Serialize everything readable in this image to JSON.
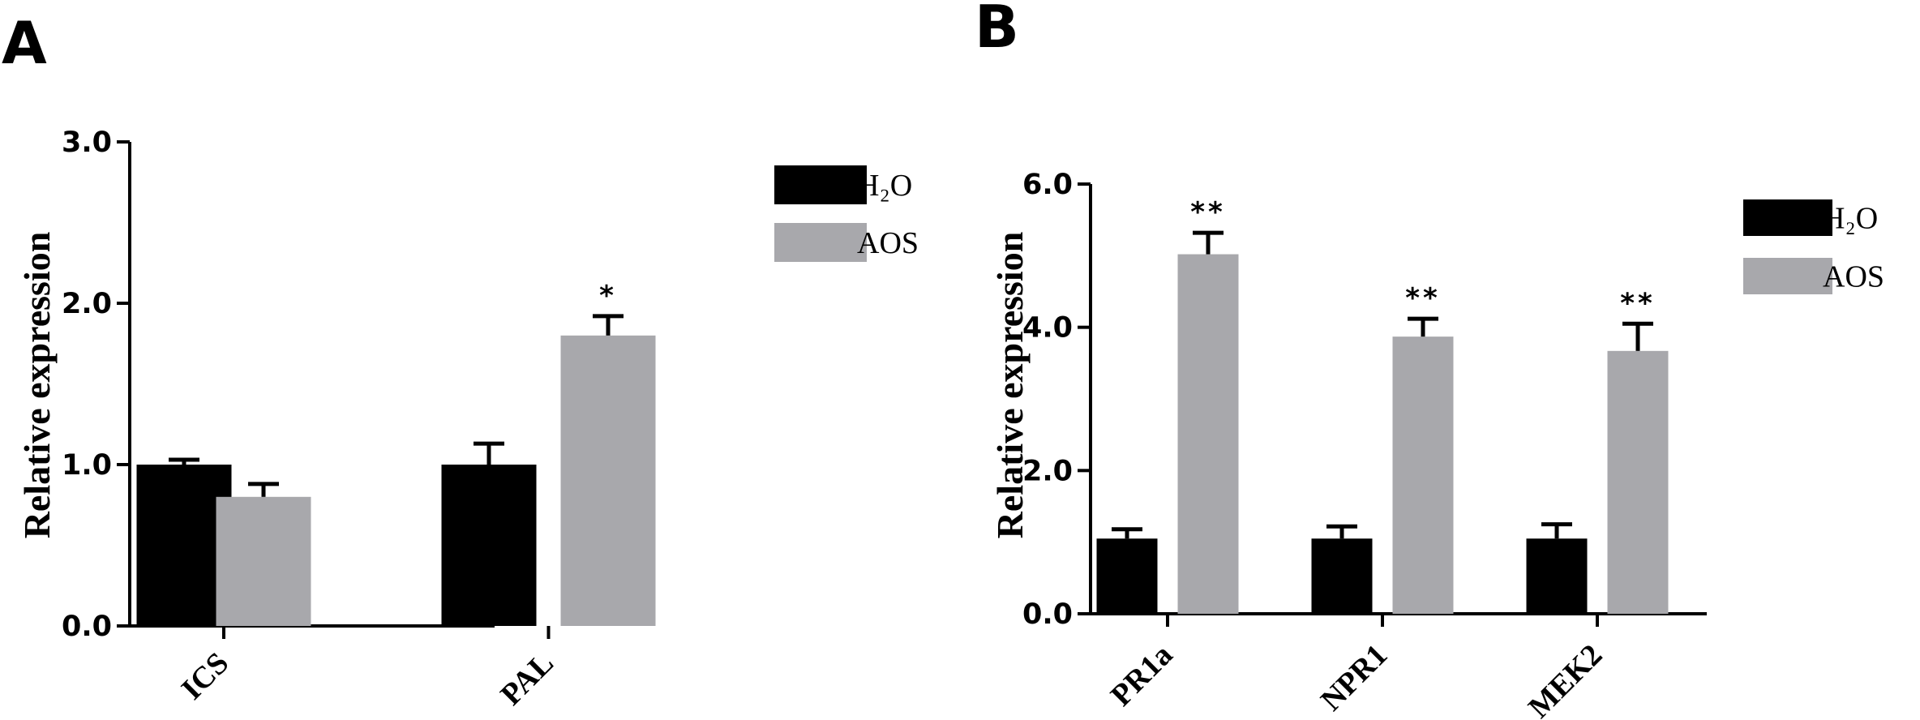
{
  "chart_data": [
    {
      "panel": "A",
      "type": "bar",
      "ylabel": "Relative expression",
      "ylim": [
        0,
        3.0
      ],
      "yticks": [
        "0.0",
        "1.0",
        "2.0",
        "3.0"
      ],
      "categories": [
        "ICS",
        "PAL"
      ],
      "series": [
        {
          "name": "H₂O",
          "color": "#000000",
          "values": [
            1.0,
            1.0
          ],
          "errors": [
            0.03,
            0.13
          ]
        },
        {
          "name": "AOS",
          "color": "#a8a8ac",
          "values": [
            0.8,
            1.8
          ],
          "errors": [
            0.08,
            0.12
          ]
        }
      ],
      "annotations": [
        {
          "category": "PAL",
          "series": "AOS",
          "text": "*"
        }
      ],
      "legend_position": "top-right"
    },
    {
      "panel": "B",
      "type": "bar",
      "ylabel": "Relative expression",
      "ylim": [
        0,
        6.0
      ],
      "yticks": [
        "0.0",
        "2.0",
        "4.0",
        "6.0"
      ],
      "categories": [
        "PR1a",
        "NPR1",
        "MEK2"
      ],
      "series": [
        {
          "name": "H₂O",
          "color": "#000000",
          "values": [
            1.05,
            1.05,
            1.05
          ],
          "errors": [
            0.13,
            0.17,
            0.2
          ]
        },
        {
          "name": "AOS",
          "color": "#a8a8ac",
          "values": [
            5.02,
            3.87,
            3.67
          ],
          "errors": [
            0.3,
            0.25,
            0.38
          ]
        }
      ],
      "annotations": [
        {
          "category": "PR1a",
          "series": "AOS",
          "text": "**"
        },
        {
          "category": "NPR1",
          "series": "AOS",
          "text": "**"
        },
        {
          "category": "MEK2",
          "series": "AOS",
          "text": "**"
        }
      ],
      "legend_position": "top-right"
    }
  ]
}
